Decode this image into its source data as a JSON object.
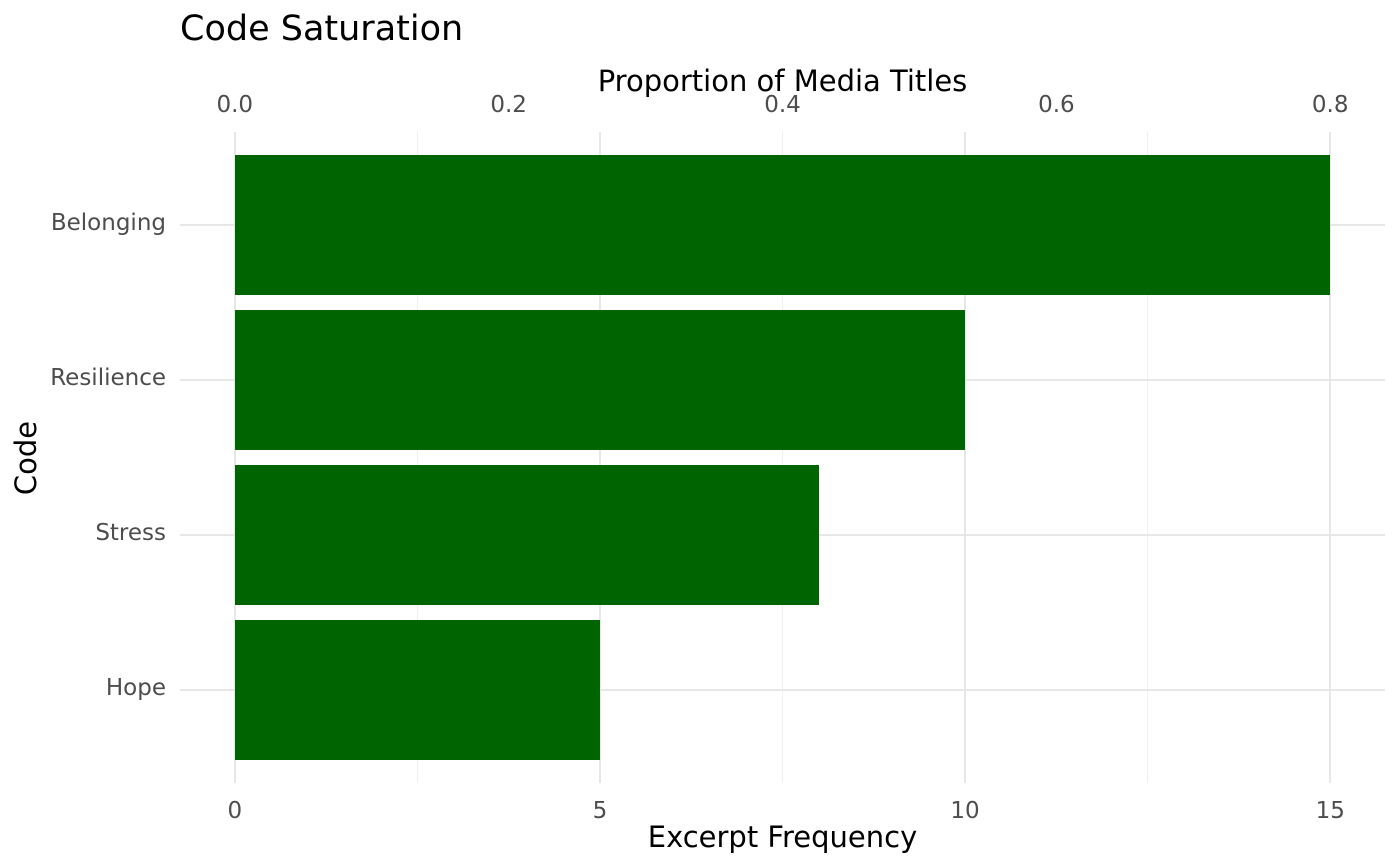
{
  "chart_data": {
    "type": "bar",
    "orientation": "horizontal",
    "title": "Code Saturation",
    "categories": [
      "Belonging",
      "Resilience",
      "Stress",
      "Hope"
    ],
    "values": [
      15,
      10,
      8,
      5
    ],
    "xlabel_bottom": "Excerpt Frequency",
    "xlabel_top": "Proportion of Media Titles",
    "ylabel": "Code",
    "xlim_bottom": [
      0,
      15
    ],
    "xlim_top": [
      0,
      0.8
    ],
    "x_ticks_bottom": [
      0,
      5,
      10,
      15
    ],
    "x_tick_labels_bottom": [
      "0",
      "5",
      "10",
      "15"
    ],
    "x_minor_ticks_bottom": [
      2.5,
      7.5,
      12.5
    ],
    "x_ticks_top": [
      0.0,
      0.2,
      0.4,
      0.6,
      0.8
    ],
    "x_tick_labels_top": [
      "0.0",
      "0.2",
      "0.4",
      "0.6",
      "0.8"
    ],
    "bar_color": "#006400",
    "grid": "on",
    "grid_major_color": "#e7e7e7",
    "grid_minor_color": "#efefef",
    "tick_label_color": "#4d4d4d",
    "text_color": "#000000",
    "background_color": "#ffffff",
    "legend": "none"
  }
}
